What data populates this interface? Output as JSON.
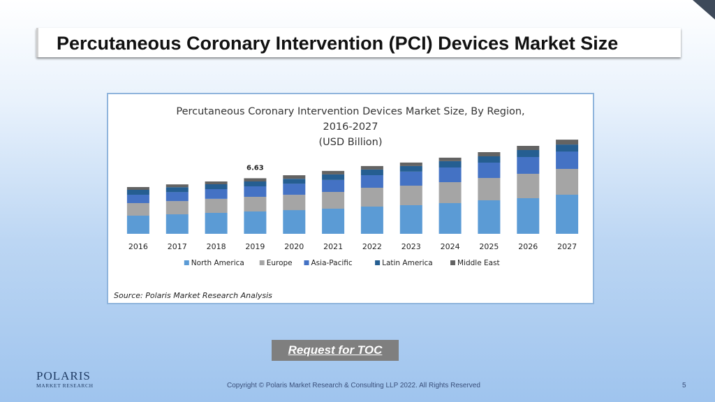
{
  "slide": {
    "title": "Percutaneous Coronary Intervention (PCI) Devices Market Size",
    "toc_button": "Request for TOC",
    "logo_main": "POLARIS",
    "logo_sub": "MARKET RESEARCH",
    "copyright": "Copyright © Polaris Market Research & Consulting LLP 2022. All Rights Reserved",
    "page_number": "5"
  },
  "colors": {
    "North America": "#5b9bd5",
    "Europe": "#a5a5a5",
    "Asia-Pacific": "#4472c4",
    "Latin America": "#255e91",
    "Middle East": "#636363"
  },
  "chart_data": {
    "type": "bar",
    "stacked": true,
    "title": "Percutaneous Coronary Intervention Devices Market Size, By Region,",
    "subtitle": "2016-2027",
    "unit_label": "(USD Billion)",
    "source": "Source: Polaris Market Research Analysis",
    "legend_position": "bottom",
    "grid": false,
    "ylim": [
      0,
      12
    ],
    "categories": [
      "2016",
      "2017",
      "2018",
      "2019",
      "2020",
      "2021",
      "2022",
      "2023",
      "2024",
      "2025",
      "2026",
      "2027"
    ],
    "annotations": [
      {
        "category": "2019",
        "text": "6.63"
      }
    ],
    "series": [
      {
        "name": "North America",
        "values": [
          2.17,
          2.33,
          2.5,
          2.67,
          2.83,
          3.0,
          3.25,
          3.42,
          3.67,
          4.0,
          4.25,
          4.67
        ]
      },
      {
        "name": "Europe",
        "values": [
          1.5,
          1.58,
          1.67,
          1.75,
          1.83,
          2.0,
          2.25,
          2.33,
          2.5,
          2.67,
          2.92,
          3.08
        ]
      },
      {
        "name": "Asia-Pacific",
        "values": [
          1.0,
          1.08,
          1.17,
          1.25,
          1.33,
          1.42,
          1.5,
          1.67,
          1.75,
          1.83,
          2.0,
          2.08
        ]
      },
      {
        "name": "Latin America",
        "values": [
          0.58,
          0.58,
          0.58,
          0.58,
          0.58,
          0.67,
          0.67,
          0.67,
          0.75,
          0.75,
          0.83,
          0.83
        ]
      },
      {
        "name": "Middle East",
        "values": [
          0.33,
          0.33,
          0.33,
          0.38,
          0.42,
          0.42,
          0.42,
          0.42,
          0.42,
          0.5,
          0.5,
          0.58
        ]
      }
    ]
  }
}
